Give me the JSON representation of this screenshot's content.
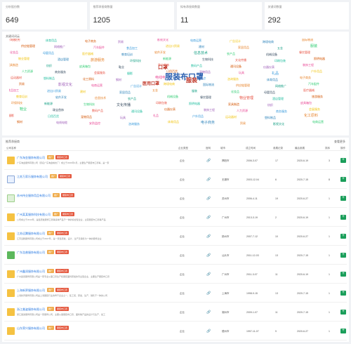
{
  "stats": [
    {
      "label": "分析股份数",
      "value": "649"
    },
    {
      "label": "推荐承接商数量",
      "value": "1205"
    },
    {
      "label": "拟有承接商数量",
      "value": "11"
    },
    {
      "label": "关键词数量",
      "value": "292"
    }
  ],
  "cloud": {
    "title": "关键词词云",
    "words": [
      "咨询服务",
      "体育用品",
      "电子商务",
      "贸易",
      "影视文化",
      "电商运营",
      "广告设计",
      "跨境电商",
      "国际物流",
      "供应链管理",
      "网络推广",
      "汽车配件",
      "食品加工",
      "进出口贸易",
      "建材",
      "家居用品",
      "五金",
      "服装",
      "化妆品",
      "母婴用品",
      "医疗器械",
      "教育培训",
      "软件开发",
      "信息技术",
      "农产品",
      "机械设备",
      "餐饮管理",
      "物业管理",
      "酒店管理",
      "旅游服务",
      "环保科技",
      "新能源",
      "生物科技",
      "文化传播",
      "印刷包装",
      "照明电器",
      "家具制造",
      "纺织",
      "皮具箱包",
      "鞋业",
      "珠宝首饰",
      "数码产品",
      "通讯设备",
      "仪器仪表",
      "装饰工程",
      "人力资源",
      "商务服务",
      "会展服务",
      "摄影",
      "日用百货",
      "宠物用品",
      "玩具",
      "礼品",
      "户外用品",
      "运动器材",
      "塑料制品",
      "化工原料",
      "钢材",
      "电线电缆",
      "安防监控"
    ],
    "big_words": [
      "服装布口罩",
      "口罩",
      "服装",
      "医用口罩"
    ],
    "colors": [
      "#e74c3c",
      "#3498db",
      "#2ecc71",
      "#9b59b6",
      "#e67e22",
      "#1abc9c",
      "#f1c40f",
      "#34495e",
      "#e84393",
      "#16a085",
      "#d35400",
      "#2980b9"
    ]
  },
  "list": {
    "title": "推荐承接商",
    "more": "查看更多",
    "headers": [
      "公司名称",
      "企业类型",
      "官网",
      "城市",
      "成立时间",
      "参展记录",
      "最后参展",
      "排序",
      "操作"
    ],
    "rows": [
      {
        "name": "广东淘金服饰有限公司",
        "tag1": "推广",
        "tag2": "服装布口罩",
        "desc": "广东淘金服饰有限公司（原名广东淘金制衣厂）成立于2006年3月，主要生产服装布口罩等，是一家",
        "type": "企业",
        "city": "揭阳市",
        "date": "2006-3-07",
        "count": "17",
        "last": "2020-6-19",
        "rank": "3",
        "logo": "yellow"
      },
      {
        "name": "江苏万家乐服饰有限公司",
        "tag1": "推广",
        "tag2": "服装布口罩",
        "desc": "",
        "type": "企业",
        "city": "无锡市",
        "date": "2003-12-04",
        "count": "6",
        "last": "2020-7-15",
        "rank": "8",
        "logo": "cyan"
      },
      {
        "name": "苏州伟业服饰用品有限公司",
        "tag1": "推广",
        "tag2": "服装布口罩",
        "desc": "",
        "type": "企业",
        "city": "苏州市",
        "date": "2006-4-11",
        "count": "19",
        "last": "2020-6-27",
        "rank": "1",
        "logo": "lightgreen"
      },
      {
        "name": "广州某某服饰科技有限公司",
        "tag1": "推广",
        "tag2": "服装布口罩",
        "desc": "公司成立于2013年，是集研发服饰口罩等多种产品于一体的综合型企业，主营服装布口罩等产品",
        "type": "企业",
        "city": "广州市",
        "date": "2013-3-19",
        "count": "2",
        "last": "2020-6-19",
        "rank": "1",
        "logo": "yellow"
      },
      {
        "name": "江苏远腾服饰有限公司",
        "tag1": "推广",
        "tag2": "服装布口罩",
        "desc": "江苏远腾服饰有限公司成立于2007年，是一家集研发、设计、生产及销售为一体的服饰企业",
        "type": "企业",
        "city": "扬州市",
        "date": "2007-7-12",
        "count": "10",
        "last": "2020-6-27",
        "rank": "1",
        "logo": "yellow"
      },
      {
        "name": "广东浩普服饰有限公司",
        "tag1": "推广",
        "tag2": "服装布口罩",
        "desc": "",
        "type": "企业",
        "city": "汕头市",
        "date": "2011-12-03",
        "count": "13",
        "last": "2020-7-15",
        "rank": "1",
        "logo": "green"
      },
      {
        "name": "广州鑫润服饰有限公司",
        "tag1": "推广",
        "tag2": "服装布口罩",
        "desc": "广州鑫润服饰有限公司是一家专业从事口罩生产和服装面料研发的专业型企业，主要生产服装布口罩",
        "type": "企业",
        "city": "广州市",
        "date": "2011-3-07",
        "count": "11",
        "last": "2020-6-19",
        "rank": "1",
        "logo": "yellow"
      },
      {
        "name": "上海新界服饰有限公司",
        "tag1": "推广",
        "tag2": "服装布口罩",
        "desc": "上海新界服饰有限公司是上海服装行业的骨干企业之一，集工贸、研发、生产、销售于一体的公司",
        "type": "企业",
        "city": "上海市",
        "date": "1998-9-15",
        "count": "13",
        "last": "2020-7-15",
        "rank": "1",
        "logo": "yellow"
      },
      {
        "name": "浙江美姿服饰有限公司",
        "tag1": "推广",
        "tag2": "服装布口罩",
        "desc": "浙江美姿服饰有限公司是一家服饰公司，主要从事服装布口罩、面料等产品的设计与生产、加工",
        "type": "企业",
        "city": "湖州市",
        "date": "2009-1-07",
        "count": "11",
        "last": "2020-7-15",
        "rank": "1",
        "logo": "yellow"
      },
      {
        "name": "山东荣兴服饰有限公司",
        "tag1": "推广",
        "tag2": "服装布口罩",
        "desc": "",
        "type": "企业",
        "city": "德州市",
        "date": "1997-11-07",
        "count": "9",
        "last": "2020-6-27",
        "rank": "1",
        "logo": "yellow"
      }
    ]
  }
}
